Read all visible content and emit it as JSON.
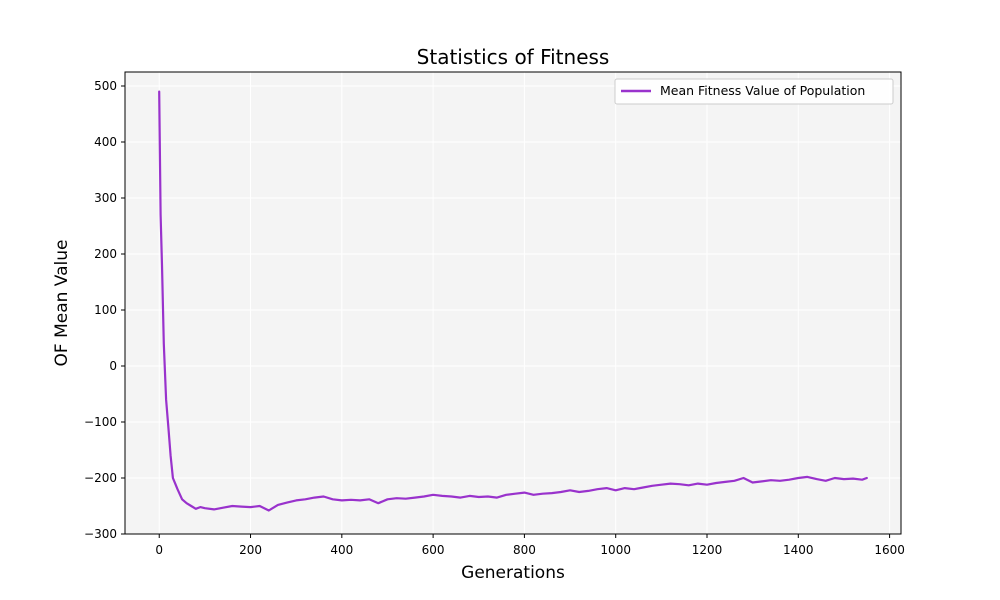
{
  "chart_data": {
    "type": "line",
    "title": "Statistics of Fitness",
    "xlabel": "Generations",
    "ylabel": "OF Mean Value",
    "xlim": [
      -75,
      1625
    ],
    "ylim": [
      -300,
      525
    ],
    "xticks": [
      0,
      200,
      400,
      600,
      800,
      1000,
      1200,
      1400,
      1600
    ],
    "yticks": [
      -300,
      -200,
      -100,
      0,
      100,
      200,
      300,
      400,
      500
    ],
    "ytick_labels": [
      "−300",
      "−200",
      "−100",
      "0",
      "100",
      "200",
      "300",
      "400",
      "500"
    ],
    "grid": true,
    "background_color": "#f4f4f4",
    "legend": {
      "position": "top-right"
    },
    "series": [
      {
        "name": "Mean Fitness Value of Population",
        "color": "#9932cc",
        "x": [
          0,
          3,
          6,
          10,
          15,
          20,
          25,
          30,
          35,
          40,
          50,
          60,
          70,
          80,
          90,
          100,
          120,
          140,
          160,
          180,
          200,
          220,
          240,
          260,
          280,
          300,
          320,
          340,
          360,
          380,
          400,
          420,
          440,
          460,
          480,
          500,
          520,
          540,
          560,
          580,
          600,
          620,
          640,
          660,
          680,
          700,
          720,
          740,
          760,
          780,
          800,
          820,
          840,
          860,
          880,
          900,
          920,
          940,
          960,
          980,
          1000,
          1020,
          1040,
          1060,
          1080,
          1100,
          1120,
          1140,
          1160,
          1180,
          1200,
          1220,
          1240,
          1260,
          1280,
          1300,
          1320,
          1340,
          1360,
          1380,
          1400,
          1420,
          1440,
          1460,
          1480,
          1500,
          1520,
          1540,
          1550
        ],
        "y": [
          490,
          270,
          180,
          40,
          -60,
          -110,
          -160,
          -200,
          -210,
          -220,
          -238,
          -245,
          -250,
          -255,
          -252,
          -254,
          -256,
          -253,
          -250,
          -251,
          -252,
          -250,
          -258,
          -248,
          -244,
          -240,
          -238,
          -235,
          -233,
          -238,
          -240,
          -239,
          -240,
          -238,
          -245,
          -238,
          -236,
          -237,
          -235,
          -233,
          -230,
          -232,
          -233,
          -235,
          -232,
          -234,
          -233,
          -235,
          -230,
          -228,
          -226,
          -230,
          -228,
          -227,
          -225,
          -222,
          -225,
          -223,
          -220,
          -218,
          -222,
          -218,
          -220,
          -217,
          -214,
          -212,
          -210,
          -211,
          -213,
          -210,
          -212,
          -209,
          -207,
          -205,
          -200,
          -208,
          -206,
          -204,
          -205,
          -203,
          -200,
          -198,
          -202,
          -205,
          -200,
          -202,
          -201,
          -203,
          -200
        ]
      }
    ]
  }
}
